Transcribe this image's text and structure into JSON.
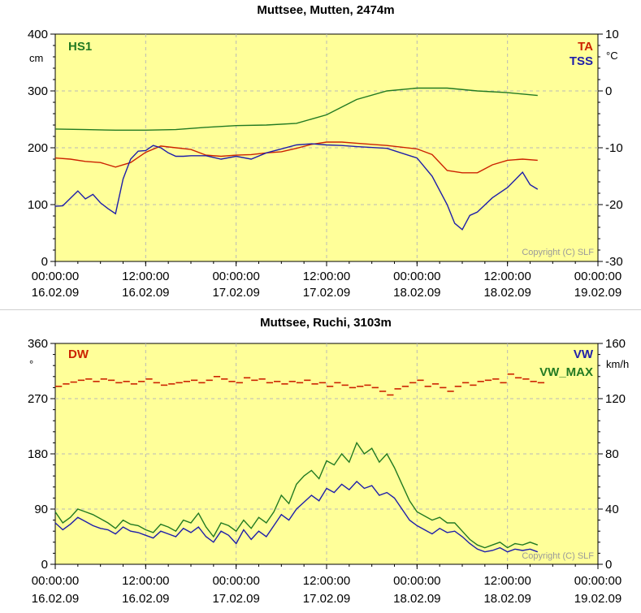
{
  "copyright": "Copyright (C) SLF",
  "charts": [
    {
      "title": "Muttsee, Mutten, 2474m",
      "left_unit": "cm",
      "right_unit": "°C",
      "left_ticks": [
        "400",
        "300",
        "200",
        "100",
        "0"
      ],
      "right_ticks": [
        "10",
        "0",
        "-10",
        "-20",
        "-30"
      ],
      "x_ticks": [
        {
          "time": "00:00:00",
          "date": "16.02.09"
        },
        {
          "time": "12:00:00",
          "date": "16.02.09"
        },
        {
          "time": "00:00:00",
          "date": "17.02.09"
        },
        {
          "time": "12:00:00",
          "date": "17.02.09"
        },
        {
          "time": "00:00:00",
          "date": "18.02.09"
        },
        {
          "time": "12:00:00",
          "date": "18.02.09"
        },
        {
          "time": "00:00:00",
          "date": "19.02.09"
        }
      ],
      "legend_left": [
        {
          "label": "HS1",
          "color": "#227a22"
        }
      ],
      "legend_right": [
        {
          "label": "TA",
          "color": "#cc2200"
        },
        {
          "label": "TSS",
          "color": "#1e1eaa"
        }
      ]
    },
    {
      "title": "Muttsee, Ruchi, 3103m",
      "left_unit": "°",
      "right_unit": "km/h",
      "left_ticks": [
        "360",
        "270",
        "180",
        "90",
        "0"
      ],
      "right_ticks": [
        "160",
        "120",
        "80",
        "40",
        "0"
      ],
      "x_ticks": [
        {
          "time": "00:00:00",
          "date": "16.02.09"
        },
        {
          "time": "12:00:00",
          "date": "16.02.09"
        },
        {
          "time": "00:00:00",
          "date": "17.02.09"
        },
        {
          "time": "12:00:00",
          "date": "17.02.09"
        },
        {
          "time": "00:00:00",
          "date": "18.02.09"
        },
        {
          "time": "12:00:00",
          "date": "18.02.09"
        },
        {
          "time": "00:00:00",
          "date": "19.02.09"
        }
      ],
      "legend_left": [
        {
          "label": "DW",
          "color": "#cc2200"
        }
      ],
      "legend_right": [
        {
          "label": "VW",
          "color": "#1e1eaa"
        },
        {
          "label": "VW_MAX",
          "color": "#227a22"
        }
      ]
    }
  ],
  "chart_data": [
    {
      "type": "line",
      "title": "Muttsee, Mutten, 2474m",
      "x_unit": "hours since 00:00:00 16.02.09",
      "xlim": [
        0,
        72
      ],
      "y_left": {
        "label": "cm",
        "ylim": [
          0,
          400
        ]
      },
      "y_right": {
        "label": "°C",
        "ylim": [
          -30,
          10
        ]
      },
      "grid": true,
      "series": [
        {
          "name": "HS1",
          "axis": "left",
          "color": "#227a22",
          "x": [
            0,
            4,
            8,
            12,
            16,
            20,
            24,
            28,
            32,
            36,
            40,
            44,
            48,
            52,
            56,
            60,
            64
          ],
          "y": [
            233,
            232,
            231,
            231,
            232,
            236,
            239,
            240,
            243,
            258,
            285,
            300,
            305,
            305,
            300,
            297,
            292
          ]
        },
        {
          "name": "TA",
          "axis": "right",
          "color": "#cc2200",
          "x": [
            0,
            2,
            4,
            6,
            8,
            10,
            12,
            14,
            16,
            18,
            20,
            22,
            24,
            26,
            28,
            30,
            32,
            34,
            36,
            38,
            40,
            42,
            44,
            46,
            48,
            50,
            52,
            54,
            56,
            58,
            60,
            62,
            64
          ],
          "y": [
            -11.8,
            -12,
            -12.4,
            -12.6,
            -13.4,
            -12.6,
            -10.8,
            -9.7,
            -10,
            -10.3,
            -11.3,
            -11.5,
            -11.3,
            -11.2,
            -10.9,
            -10.7,
            -10.1,
            -9.4,
            -9,
            -9,
            -9.2,
            -9.4,
            -9.6,
            -9.9,
            -10.2,
            -11.2,
            -14,
            -14.4,
            -14.4,
            -13,
            -12.2,
            -12,
            -12.2
          ]
        },
        {
          "name": "TSS",
          "axis": "right",
          "color": "#1e1eaa",
          "x": [
            0,
            1,
            2,
            3,
            4,
            5,
            6,
            7,
            8,
            9,
            10,
            11,
            12,
            13,
            14,
            15,
            16,
            17,
            18,
            20,
            22,
            24,
            26,
            28,
            30,
            32,
            34,
            36,
            38,
            40,
            44,
            48,
            50,
            52,
            53,
            54,
            55,
            56,
            58,
            60,
            62,
            63,
            64
          ],
          "y": [
            -20.3,
            -20.2,
            -18.9,
            -17.6,
            -19,
            -18.2,
            -19.7,
            -20.7,
            -21.6,
            -15.5,
            -12,
            -10.6,
            -10.5,
            -9.6,
            -10,
            -10.9,
            -11.5,
            -11.5,
            -11.4,
            -11.4,
            -12,
            -11.5,
            -12,
            -10.9,
            -10.2,
            -9.5,
            -9.3,
            -9.5,
            -9.6,
            -9.8,
            -10.1,
            -11.8,
            -15,
            -20,
            -23.3,
            -24.4,
            -21.9,
            -21.3,
            -18.8,
            -17,
            -14.3,
            -16.5,
            -17.3
          ]
        }
      ]
    },
    {
      "type": "line",
      "title": "Muttsee, Ruchi, 3103m",
      "x_unit": "hours since 00:00:00 16.02.09",
      "xlim": [
        0,
        72
      ],
      "y_left": {
        "label": "°",
        "ylim": [
          0,
          360
        ]
      },
      "y_right": {
        "label": "km/h",
        "ylim": [
          0,
          160
        ]
      },
      "grid": true,
      "series": [
        {
          "name": "DW",
          "axis": "left",
          "color": "#cc2200",
          "style": "steps",
          "x": [
            0,
            1,
            2,
            3,
            4,
            5,
            6,
            7,
            8,
            9,
            10,
            11,
            12,
            13,
            14,
            15,
            16,
            17,
            18,
            19,
            20,
            21,
            22,
            23,
            24,
            25,
            26,
            27,
            28,
            29,
            30,
            31,
            32,
            33,
            34,
            35,
            36,
            37,
            38,
            39,
            40,
            41,
            42,
            43,
            44,
            45,
            46,
            47,
            48,
            49,
            50,
            51,
            52,
            53,
            54,
            55,
            56,
            57,
            58,
            59,
            60,
            61,
            62,
            63,
            64
          ],
          "y": [
            290,
            294,
            297,
            300,
            302,
            298,
            302,
            300,
            296,
            298,
            294,
            298,
            302,
            296,
            292,
            294,
            296,
            298,
            300,
            296,
            300,
            306,
            302,
            298,
            296,
            304,
            300,
            302,
            296,
            298,
            294,
            298,
            296,
            300,
            294,
            296,
            290,
            296,
            292,
            288,
            290,
            292,
            288,
            282,
            276,
            286,
            290,
            296,
            300,
            290,
            294,
            288,
            282,
            290,
            296,
            292,
            298,
            300,
            302,
            296,
            310,
            304,
            302,
            298,
            296
          ]
        },
        {
          "name": "VW",
          "axis": "right",
          "color": "#1e1eaa",
          "x": [
            0,
            1,
            2,
            3,
            4,
            5,
            6,
            7,
            8,
            9,
            10,
            11,
            12,
            13,
            14,
            15,
            16,
            17,
            18,
            19,
            20,
            21,
            22,
            23,
            24,
            25,
            26,
            27,
            28,
            29,
            30,
            31,
            32,
            33,
            34,
            35,
            36,
            37,
            38,
            39,
            40,
            41,
            42,
            43,
            44,
            45,
            46,
            47,
            48,
            49,
            50,
            51,
            52,
            53,
            54,
            55,
            56,
            57,
            58,
            59,
            60,
            61,
            62,
            63,
            64
          ],
          "y": [
            30,
            25,
            29,
            34,
            31,
            28,
            26,
            25,
            22,
            27,
            24,
            23,
            21,
            19,
            24,
            22,
            20,
            26,
            23,
            27,
            20,
            16,
            24,
            21,
            15,
            25,
            18,
            24,
            20,
            28,
            36,
            32,
            40,
            45,
            50,
            46,
            55,
            52,
            58,
            54,
            60,
            55,
            57,
            50,
            52,
            48,
            40,
            32,
            28,
            25,
            22,
            26,
            23,
            24,
            20,
            15,
            11,
            9,
            10,
            12,
            9,
            11,
            10,
            11,
            9
          ]
        },
        {
          "name": "VW_MAX",
          "axis": "right",
          "color": "#227a22",
          "x": [
            0,
            1,
            2,
            3,
            4,
            5,
            6,
            7,
            8,
            9,
            10,
            11,
            12,
            13,
            14,
            15,
            16,
            17,
            18,
            19,
            20,
            21,
            22,
            23,
            24,
            25,
            26,
            27,
            28,
            29,
            30,
            31,
            32,
            33,
            34,
            35,
            36,
            37,
            38,
            39,
            40,
            41,
            42,
            43,
            44,
            45,
            46,
            47,
            48,
            49,
            50,
            51,
            52,
            53,
            54,
            55,
            56,
            57,
            58,
            59,
            60,
            61,
            62,
            63,
            64
          ],
          "y": [
            38,
            30,
            34,
            40,
            38,
            36,
            33,
            30,
            26,
            32,
            29,
            28,
            25,
            23,
            29,
            27,
            24,
            32,
            30,
            37,
            27,
            20,
            30,
            28,
            24,
            32,
            26,
            34,
            30,
            38,
            50,
            44,
            58,
            64,
            68,
            62,
            75,
            72,
            80,
            74,
            88,
            80,
            84,
            74,
            80,
            70,
            58,
            46,
            38,
            35,
            32,
            34,
            30,
            30,
            24,
            18,
            14,
            12,
            14,
            16,
            12,
            15,
            14,
            16,
            14
          ]
        }
      ]
    }
  ]
}
